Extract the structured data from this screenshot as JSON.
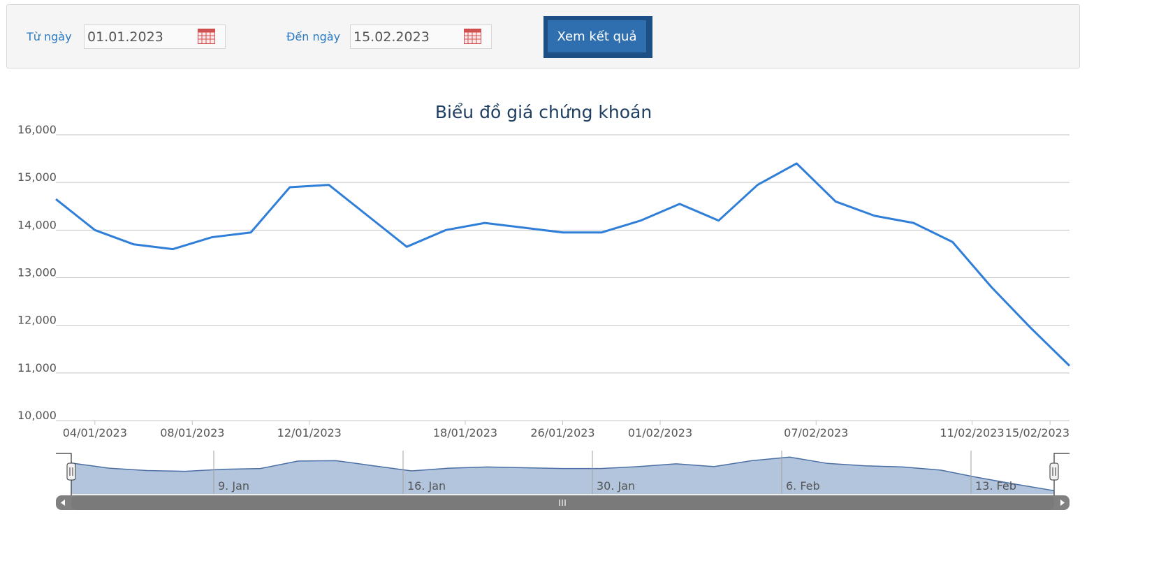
{
  "filter": {
    "from_label": "Từ ngày",
    "from_value": "01.01.2023",
    "to_label": "Đến ngày",
    "to_value": "15.02.2023",
    "submit_label": "Xem kết quả"
  },
  "colors": {
    "line": "#2f7ed8",
    "navigator_fill": "#b3c5dd",
    "navigator_line": "#4a6fa5",
    "gridline": "#c4c4c4",
    "scrollbar": "#808080",
    "button": "#2f6fb0"
  },
  "chart_data": {
    "type": "line",
    "title": "Biểu đồ giá chứng khoán",
    "xlabel": "",
    "ylabel": "",
    "ylim": [
      10000,
      16000
    ],
    "y_ticks": [
      "10,000",
      "11,000",
      "12,000",
      "13,000",
      "14,000",
      "15,000",
      "16,000"
    ],
    "x_ticks": [
      "04/01/2023",
      "08/01/2023",
      "12/01/2023",
      "18/01/2023",
      "26/01/2023",
      "01/02/2023",
      "07/02/2023",
      "11/02/2023",
      "15/02/2023"
    ],
    "series": [
      {
        "values": [
          14650,
          14000,
          13700,
          13600,
          13850,
          13950,
          14900,
          14950,
          14300,
          13650,
          14000,
          14150,
          14050,
          13950,
          13950,
          14200,
          14550,
          14200,
          14950,
          15400,
          14600,
          14300,
          14150,
          13750,
          12800,
          11950,
          11150
        ]
      }
    ],
    "navigator": {
      "labels": [
        "9. Jan",
        "16. Jan",
        "30. Jan",
        "6. Feb",
        "13. Feb"
      ]
    },
    "grid": true,
    "legend": "none"
  }
}
